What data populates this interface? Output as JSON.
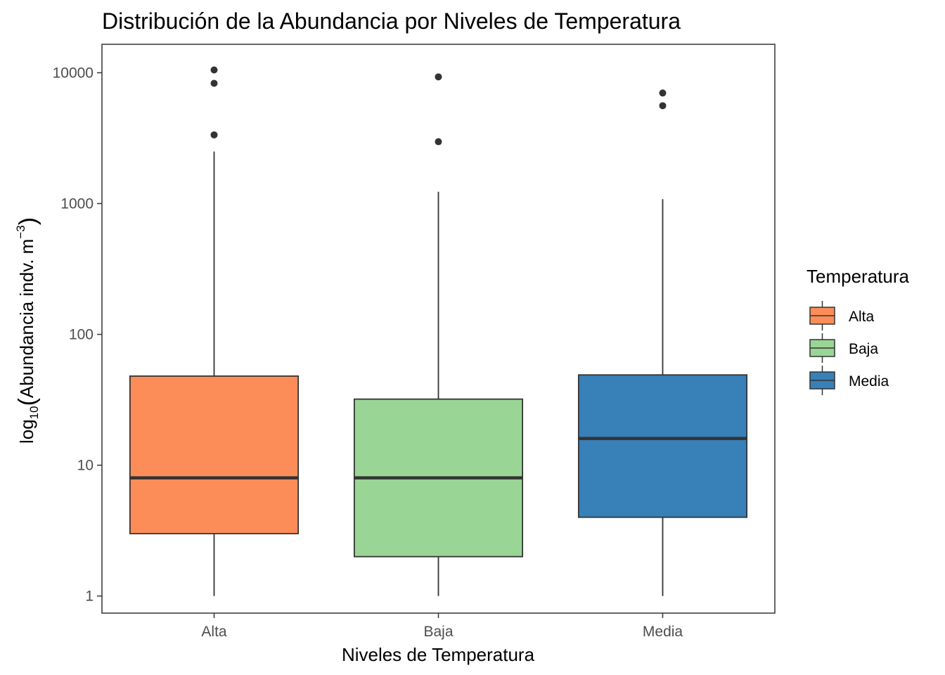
{
  "chart_data": {
    "type": "box",
    "title": "Distribución de la Abundancia por Niveles de Temperatura",
    "xlabel": "Niveles de Temperatura",
    "ylabel": {
      "main": "log",
      "subscript": "10",
      "paren_open": "(",
      "text": "Abundancia indv. m",
      "superscript": "−3",
      "paren_close": ")"
    },
    "y_scale": "log10",
    "ylim": [
      0.74,
      16500
    ],
    "y_ticks": [
      1,
      10,
      100,
      1000,
      10000
    ],
    "y_tick_labels": [
      "1",
      "10",
      "100",
      "1000",
      "10000"
    ],
    "grid": false,
    "categories": [
      "Alta",
      "Baja",
      "Media"
    ],
    "boxes": [
      {
        "category": "Alta",
        "whisker_low": 1,
        "q1": 3,
        "median": 8,
        "q3": 48,
        "whisker_high": 2500,
        "outliers": [
          10500,
          8300,
          3350
        ],
        "fill": "#fc8d59"
      },
      {
        "category": "Baja",
        "whisker_low": 1,
        "q1": 2,
        "median": 8,
        "q3": 32,
        "whisker_high": 1230,
        "outliers": [
          9300,
          2970
        ],
        "fill": "#99d594"
      },
      {
        "category": "Media",
        "whisker_low": 1,
        "q1": 4,
        "median": 16,
        "q3": 49,
        "whisker_high": 1080,
        "outliers": [
          7000,
          5600
        ],
        "fill": "#3880b8"
      }
    ],
    "legend": {
      "title": "Temperatura",
      "position": "right",
      "entries": [
        "Alta",
        "Baja",
        "Media"
      ]
    },
    "colors": {
      "box_outline": "#333333",
      "median_line": "#333333",
      "outlier": "#333333",
      "panel_border": "#333333",
      "tick_text": "#4d4d4d"
    }
  }
}
